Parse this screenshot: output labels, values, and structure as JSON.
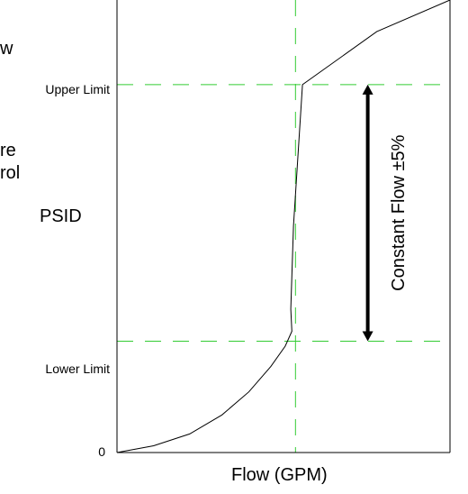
{
  "side_labels": [
    "w",
    "re",
    "rol"
  ],
  "chart_data": {
    "type": "line",
    "title": "",
    "xlabel": "Flow (GPM)",
    "ylabel": "PSID",
    "y_tick_labels": {
      "zero": "0",
      "lower": "Lower Limit",
      "upper": "Upper Limit"
    },
    "xlim": [
      0,
      1
    ],
    "ylim": [
      0,
      1
    ],
    "grid": false,
    "reference_lines": {
      "lower_limit_y": 0.246,
      "upper_limit_y": 0.813,
      "flow_x": 0.536
    },
    "series": [
      {
        "x": [
          0,
          0.11,
          0.218,
          0.315,
          0.396,
          0.462,
          0.505,
          0.525,
          0.522,
          0.53,
          0.557,
          0.78,
          1.0
        ],
        "y": [
          0,
          0.015,
          0.041,
          0.083,
          0.134,
          0.19,
          0.235,
          0.268,
          0.317,
          0.501,
          0.813,
          0.93,
          1.0
        ]
      }
    ],
    "annotation": {
      "label": "Constant Flow ±5%",
      "x": 0.753,
      "y_from": 0.246,
      "y_to": 0.813
    },
    "colors": {
      "curve": "#000000",
      "axis": "#000000",
      "reference": "#33cc33",
      "arrow": "#000000"
    }
  }
}
